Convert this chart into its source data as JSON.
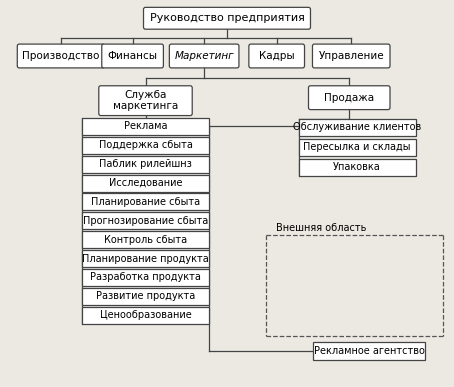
{
  "bg_color": "#ece9e3",
  "box_bg": "#ffffff",
  "box_edge": "#444444",
  "text_color": "#000000",
  "title": "Руководство предприятия",
  "level2": [
    "Производство",
    "Финансы",
    "Маркетинг",
    "Кадры",
    "Управление"
  ],
  "level2_italic": [
    false,
    false,
    true,
    false,
    false
  ],
  "left_header": "Служба\nмаркетинга",
  "right_header": "Продажа",
  "left_items": [
    "Реклама",
    "Поддержка сбыта",
    "Паблик рилейшнз",
    "Исследование",
    "Планирование сбыта",
    "Прогнозирование сбыта",
    "Контроль сбыта",
    "Планирование продукта",
    "Разработка продукта",
    "Развитие продукта",
    "Ценообразование"
  ],
  "right_items": [
    "Обслуживание клиентов",
    "Пересылка и склады",
    "Упаковка"
  ],
  "external_label": "Внешняя область",
  "external_box": "Рекламное агентство"
}
